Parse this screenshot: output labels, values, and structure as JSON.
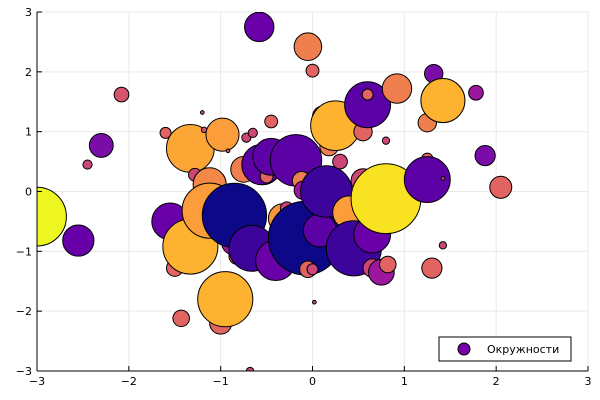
{
  "chart_data": {
    "type": "scatter",
    "title": "",
    "xlabel": "",
    "ylabel": "",
    "xlim": [
      -3,
      3
    ],
    "ylim": [
      -3,
      3
    ],
    "grid": true,
    "xticks": [
      -3,
      -2,
      -1,
      0,
      1,
      2,
      3
    ],
    "yticks": [
      -3,
      -2,
      -1,
      0,
      1,
      2,
      3
    ],
    "xtick_labels": [
      "−3",
      "−2",
      "−1",
      "0",
      "1",
      "2",
      "3"
    ],
    "ytick_labels": [
      "−3",
      "−2",
      "−1",
      "0",
      "1",
      "2",
      "3"
    ],
    "legend": {
      "label": "Окружности",
      "placement": "bottom-right",
      "marker_color": "#7700a8"
    },
    "series": [
      {
        "name": "Окружности",
        "points": [
          {
            "x": -3.0,
            "y": -0.42,
            "r": 0.32,
            "color": "#eef622"
          },
          {
            "x": -2.55,
            "y": -0.82,
            "r": 0.17,
            "color": "#6700a8"
          },
          {
            "x": -2.3,
            "y": 0.77,
            "r": 0.13,
            "color": "#7a0ca8"
          },
          {
            "x": -2.45,
            "y": 0.45,
            "r": 0.05,
            "color": "#cb4779"
          },
          {
            "x": -2.08,
            "y": 1.62,
            "r": 0.08,
            "color": "#d6556d"
          },
          {
            "x": -1.6,
            "y": 0.98,
            "r": 0.06,
            "color": "#e16462"
          },
          {
            "x": -1.55,
            "y": -0.5,
            "r": 0.2,
            "color": "#6a00a8"
          },
          {
            "x": -1.5,
            "y": -1.28,
            "r": 0.09,
            "color": "#e16462"
          },
          {
            "x": -1.43,
            "y": -2.12,
            "r": 0.09,
            "color": "#e16462"
          },
          {
            "x": -1.33,
            "y": 0.72,
            "r": 0.26,
            "color": "#fca636"
          },
          {
            "x": -1.33,
            "y": -0.92,
            "r": 0.3,
            "color": "#fdb32f"
          },
          {
            "x": -1.28,
            "y": 0.28,
            "r": 0.07,
            "color": "#cc4778"
          },
          {
            "x": -1.2,
            "y": 1.32,
            "r": 0.02,
            "color": "#d35171"
          },
          {
            "x": -1.18,
            "y": 1.03,
            "r": 0.03,
            "color": "#d35171"
          },
          {
            "x": -1.12,
            "y": 0.12,
            "r": 0.18,
            "color": "#f48849"
          },
          {
            "x": -1.12,
            "y": -0.32,
            "r": 0.3,
            "color": "#fa9d3a"
          },
          {
            "x": -1.0,
            "y": -2.2,
            "r": 0.12,
            "color": "#e16462"
          },
          {
            "x": -0.98,
            "y": 0.95,
            "r": 0.18,
            "color": "#fa9d3a"
          },
          {
            "x": -0.98,
            "y": -0.68,
            "r": 0.07,
            "color": "#cc4778"
          },
          {
            "x": -0.95,
            "y": -1.8,
            "r": 0.3,
            "color": "#fdb32f"
          },
          {
            "x": -0.92,
            "y": 0.68,
            "r": 0.02,
            "color": "#d35171"
          },
          {
            "x": -0.92,
            "y": -0.18,
            "r": 0.06,
            "color": "#cc4778"
          },
          {
            "x": -0.85,
            "y": -0.85,
            "r": 0.14,
            "color": "#9c179e"
          },
          {
            "x": -0.85,
            "y": -0.4,
            "r": 0.35,
            "color": "#0d0887"
          },
          {
            "x": -0.82,
            "y": -1.08,
            "r": 0.09,
            "color": "#e16462"
          },
          {
            "x": -0.75,
            "y": 0.37,
            "r": 0.14,
            "color": "#f07f4f"
          },
          {
            "x": -0.72,
            "y": 0.9,
            "r": 0.05,
            "color": "#cc4778"
          },
          {
            "x": -0.65,
            "y": 0.98,
            "r": 0.05,
            "color": "#cc4778"
          },
          {
            "x": -0.66,
            "y": -0.95,
            "r": 0.25,
            "color": "#3c049b"
          },
          {
            "x": -0.68,
            "y": -3.0,
            "r": 0.04,
            "color": "#cc4778"
          },
          {
            "x": -0.58,
            "y": 2.75,
            "r": 0.16,
            "color": "#6a00a8"
          },
          {
            "x": -0.55,
            "y": 0.45,
            "r": 0.22,
            "color": "#5c01a6"
          },
          {
            "x": -0.5,
            "y": 0.25,
            "r": 0.07,
            "color": "#e16462"
          },
          {
            "x": -0.45,
            "y": 1.17,
            "r": 0.07,
            "color": "#e16462"
          },
          {
            "x": -0.45,
            "y": 0.58,
            "r": 0.2,
            "color": "#5c01a6"
          },
          {
            "x": -0.4,
            "y": -1.15,
            "r": 0.22,
            "color": "#6a00a8"
          },
          {
            "x": -0.32,
            "y": -0.45,
            "r": 0.16,
            "color": "#f89540"
          },
          {
            "x": -0.28,
            "y": -0.28,
            "r": 0.07,
            "color": "#cc4778"
          },
          {
            "x": -0.32,
            "y": -0.58,
            "r": 0.02,
            "color": "#e16462"
          },
          {
            "x": -0.18,
            "y": 0.52,
            "r": 0.28,
            "color": "#5c01a6"
          },
          {
            "x": -0.12,
            "y": 0.18,
            "r": 0.1,
            "color": "#f07f4f"
          },
          {
            "x": -0.1,
            "y": 0.02,
            "r": 0.1,
            "color": "#9c179e"
          },
          {
            "x": -0.08,
            "y": -0.78,
            "r": 0.4,
            "color": "#0d0887"
          },
          {
            "x": -0.05,
            "y": -1.3,
            "r": 0.09,
            "color": "#e16462"
          },
          {
            "x": -0.05,
            "y": 2.42,
            "r": 0.15,
            "color": "#f07f4f"
          },
          {
            "x": 0.0,
            "y": 2.02,
            "r": 0.07,
            "color": "#e16462"
          },
          {
            "x": 0.02,
            "y": -1.85,
            "r": 0.02,
            "color": "#cc4778"
          },
          {
            "x": 0.0,
            "y": -1.3,
            "r": 0.06,
            "color": "#cc4778"
          },
          {
            "x": 0.08,
            "y": -0.65,
            "r": 0.18,
            "color": "#5c01a6"
          },
          {
            "x": 0.12,
            "y": 1.25,
            "r": 0.12,
            "color": "#f07f4f"
          },
          {
            "x": 0.18,
            "y": 0.75,
            "r": 0.1,
            "color": "#f07f4f"
          },
          {
            "x": 0.15,
            "y": 0.0,
            "r": 0.28,
            "color": "#3c049b"
          },
          {
            "x": 0.25,
            "y": 1.1,
            "r": 0.27,
            "color": "#fdb32f"
          },
          {
            "x": 0.3,
            "y": 0.5,
            "r": 0.08,
            "color": "#cc4778"
          },
          {
            "x": 0.4,
            "y": -0.35,
            "r": 0.18,
            "color": "#fa9d3a"
          },
          {
            "x": 0.45,
            "y": -0.95,
            "r": 0.3,
            "color": "#3c049b"
          },
          {
            "x": 0.55,
            "y": 1.0,
            "r": 0.1,
            "color": "#e16462"
          },
          {
            "x": 0.55,
            "y": 0.18,
            "r": 0.13,
            "color": "#cc4778"
          },
          {
            "x": 0.6,
            "y": 1.45,
            "r": 0.25,
            "color": "#5c01a6"
          },
          {
            "x": 0.6,
            "y": 1.62,
            "r": 0.06,
            "color": "#e16462"
          },
          {
            "x": 0.65,
            "y": -1.28,
            "r": 0.1,
            "color": "#cc4778"
          },
          {
            "x": 0.65,
            "y": -0.72,
            "r": 0.2,
            "color": "#6a00a8"
          },
          {
            "x": 0.75,
            "y": -1.35,
            "r": 0.14,
            "color": "#9c179e"
          },
          {
            "x": 0.8,
            "y": 0.85,
            "r": 0.04,
            "color": "#cc4778"
          },
          {
            "x": 0.82,
            "y": -1.22,
            "r": 0.09,
            "color": "#e16462"
          },
          {
            "x": 0.8,
            "y": -0.12,
            "r": 0.38,
            "color": "#f9e221"
          },
          {
            "x": 0.92,
            "y": 1.72,
            "r": 0.16,
            "color": "#f07f4f"
          },
          {
            "x": 1.25,
            "y": 1.15,
            "r": 0.1,
            "color": "#f07f4f"
          },
          {
            "x": 1.25,
            "y": 0.55,
            "r": 0.06,
            "color": "#e16462"
          },
          {
            "x": 1.25,
            "y": 0.2,
            "r": 0.25,
            "color": "#5c01a6"
          },
          {
            "x": 1.3,
            "y": -1.28,
            "r": 0.11,
            "color": "#e16462"
          },
          {
            "x": 1.32,
            "y": 1.97,
            "r": 0.1,
            "color": "#7a0ca8"
          },
          {
            "x": 1.4,
            "y": 1.67,
            "r": 0.14,
            "color": "#f07f4f"
          },
          {
            "x": 1.42,
            "y": 1.52,
            "r": 0.24,
            "color": "#fdb32f"
          },
          {
            "x": 1.42,
            "y": 0.22,
            "r": 0.02,
            "color": "#cc4778"
          },
          {
            "x": 1.42,
            "y": -0.9,
            "r": 0.04,
            "color": "#cc4778"
          },
          {
            "x": 1.78,
            "y": 1.65,
            "r": 0.08,
            "color": "#9c179e"
          },
          {
            "x": 1.88,
            "y": 0.6,
            "r": 0.11,
            "color": "#7a0ca8"
          },
          {
            "x": 2.05,
            "y": 0.07,
            "r": 0.12,
            "color": "#e16462"
          }
        ]
      }
    ]
  }
}
